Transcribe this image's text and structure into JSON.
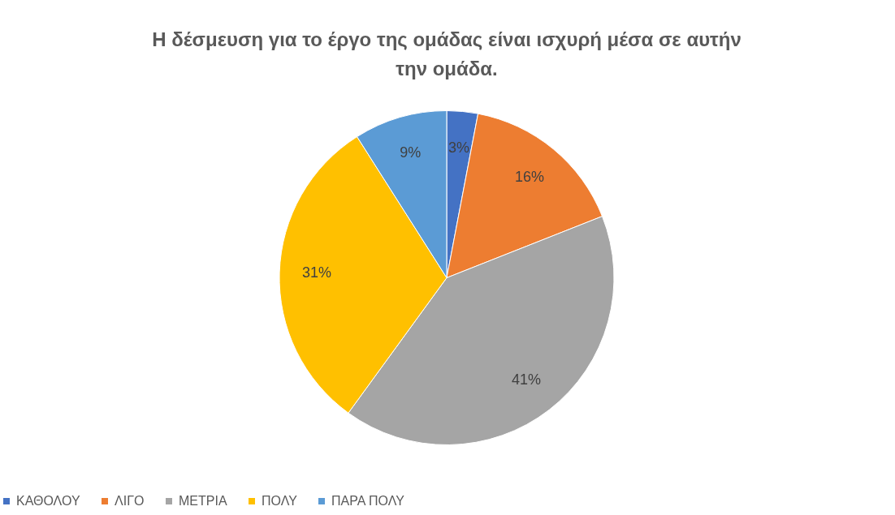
{
  "chart_data": {
    "type": "pie",
    "title": "Η δέσμευση για το έργο της ομάδας είναι ισχυρή μέσα σε αυτήν την ομάδα.",
    "categories": [
      "ΚΑΘΟΛΟΥ",
      "ΛΙΓΟ",
      "ΜΕΤΡΙΑ",
      "ΠΟΛΥ",
      "ΠΑΡΑ ΠΟΛΥ"
    ],
    "values": [
      3,
      16,
      41,
      31,
      9
    ],
    "value_labels": [
      "3%",
      "16%",
      "41%",
      "31%",
      "9%"
    ],
    "colors": [
      "#4472c4",
      "#ed7d31",
      "#a5a5a5",
      "#ffc000",
      "#5b9bd5"
    ],
    "legend": "bottom"
  }
}
